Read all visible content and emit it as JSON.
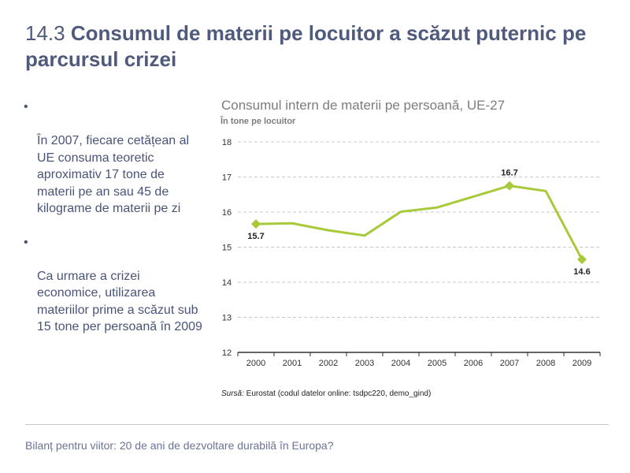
{
  "slide": {
    "number": "14.3",
    "title": "Consumul de materii pe locuitor a scăzut puternic pe parcursul crizei"
  },
  "bullets": [
    "În 2007, fiecare cetățean al UE consuma teoretic aproximativ 17 tone de materii pe an sau 45 de kilograme de materii pe zi",
    "Ca urmare a crizei economice, utilizarea materiilor prime a scăzut sub\n15 tone per persoană în 2009"
  ],
  "chart_data": {
    "type": "line",
    "title": "Consumul intern de materii pe persoană, UE-27",
    "subtitle": "În tone pe locuitor",
    "categories": [
      "2000",
      "2001",
      "2002",
      "2003",
      "2004",
      "2005",
      "2006",
      "2007",
      "2008",
      "2009"
    ],
    "series": [
      {
        "values": [
          15.66,
          15.68,
          15.48,
          15.33,
          16.01,
          16.13,
          16.44,
          16.75,
          16.6,
          14.65
        ]
      }
    ],
    "data_labels": [
      {
        "index": 0,
        "text": "15.7"
      },
      {
        "index": 7,
        "text": "16.7"
      },
      {
        "index": 9,
        "text": "14.6"
      }
    ],
    "yticks": [
      "12",
      "13",
      "14",
      "15",
      "16",
      "17",
      "18"
    ],
    "ylim": [
      12,
      18
    ],
    "grid": true,
    "line_color": "#a8c93a",
    "marker_color": "#a8c93a"
  },
  "source": {
    "label": "Sursă:",
    "text": " Eurostat (codul datelor online: tsdpc220, demo_gind)"
  },
  "footer": "Bilanț pentru viitor: 20 de ani de dezvoltare durabilă în Europa?"
}
